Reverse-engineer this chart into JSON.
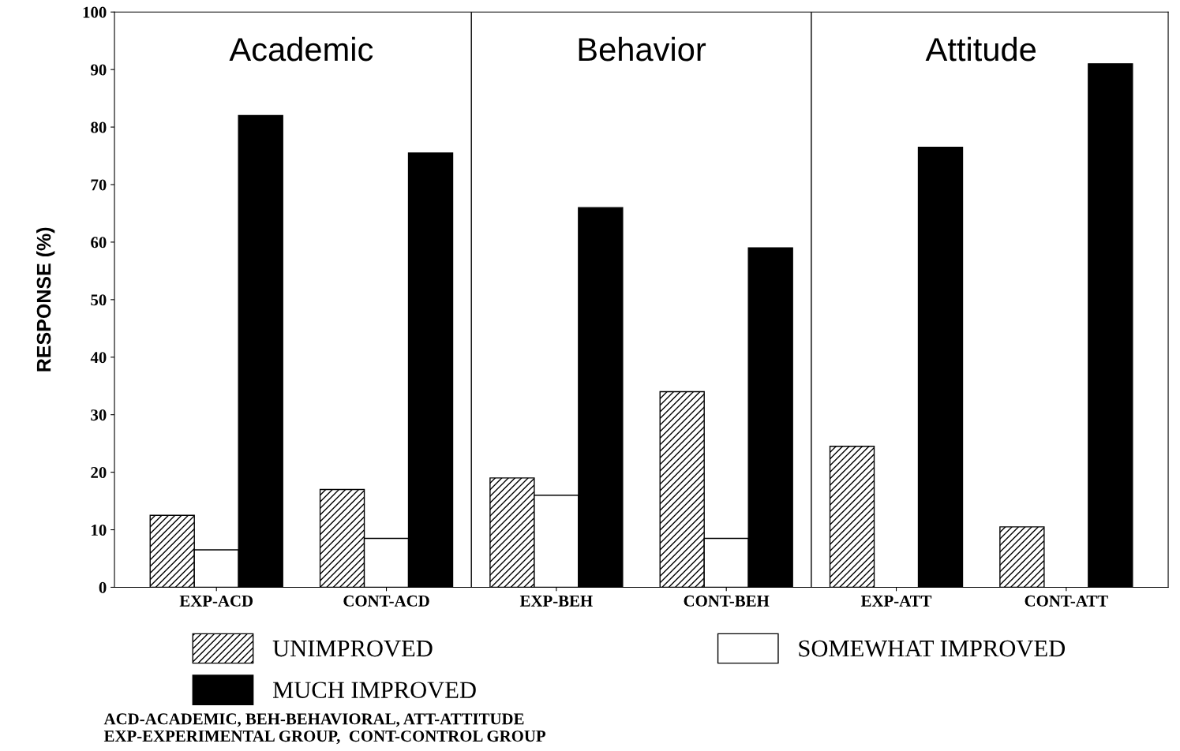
{
  "chart_data": {
    "type": "bar",
    "ylabel": "RESPONSE (%)",
    "categories": [
      "EXP-ACD",
      "CONT-ACD",
      "EXP-BEH",
      "CONT-BEH",
      "EXP-ATT",
      "CONT-ATT"
    ],
    "series": [
      {
        "name": "UNIMPROVED",
        "color": "#000000",
        "values": [
          12.5,
          17,
          19,
          34,
          24.5,
          10.5
        ]
      },
      {
        "name": "SOMEWHAT IMPROVED",
        "color": "#ffffff",
        "values": [
          6.5,
          8.5,
          16,
          8.5,
          null,
          null
        ]
      },
      {
        "name": "MUCH IMPROVED",
        "color": "#000000",
        "values": [
          82,
          75.5,
          66,
          59,
          76.5,
          91
        ]
      }
    ],
    "ylim": [
      0,
      100
    ],
    "yticks": [
      0,
      10,
      20,
      30,
      40,
      50,
      60,
      70,
      80,
      90,
      100
    ],
    "annotations": [
      "Academic",
      "Behavior",
      "Attitude",
      "ACD-ACADEMIC, BEH-BEHAVIORAL, ATT-ATTITUDE\nEXP-EXPERIMENTAL GROUP,  CONT-CONTROL GROUP"
    ],
    "legend": "bottom",
    "grid": false
  }
}
